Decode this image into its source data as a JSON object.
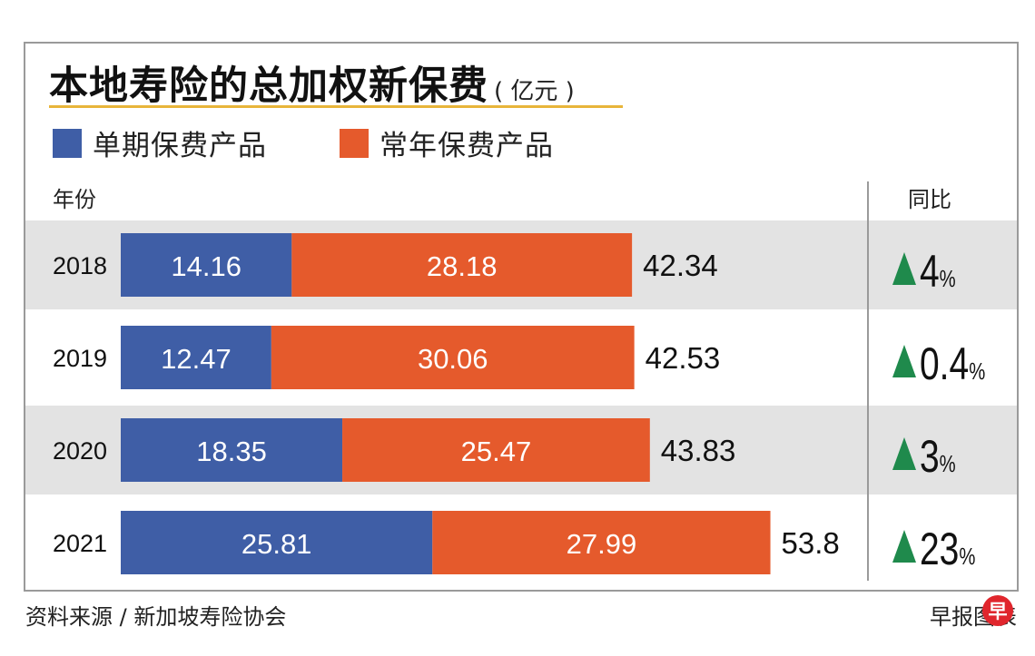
{
  "title": "本地寿险的总加权新保费",
  "unit": "( 亿元 )",
  "legend": [
    {
      "label": "单期保费产品",
      "color": "#3f5ea6"
    },
    {
      "label": "常年保费产品",
      "color": "#e55a2c"
    }
  ],
  "headers": {
    "year": "年份",
    "yoy": "同比"
  },
  "footer": {
    "source": "资料来源 / 新加坡寿险协会",
    "credit": "早报图表",
    "logo_text": "早"
  },
  "colors": {
    "single": "#3f5ea6",
    "regular": "#e55a2c",
    "row_shade": "#e3e3e3",
    "arrow": "#1f8a4c"
  },
  "chart_data": {
    "type": "bar",
    "stacked": true,
    "orientation": "horizontal",
    "categories": [
      "2018",
      "2019",
      "2020",
      "2021"
    ],
    "series": [
      {
        "name": "单期保费产品",
        "values": [
          14.16,
          12.47,
          18.35,
          25.81
        ]
      },
      {
        "name": "常年保费产品",
        "values": [
          28.18,
          30.06,
          25.47,
          27.99
        ]
      }
    ],
    "series_labels": [
      [
        "14.16",
        "12.47",
        "18.35",
        "25.81"
      ],
      [
        "28.18",
        "30.06",
        "25.47",
        "27.99"
      ]
    ],
    "totals": [
      "42.34",
      "42.53",
      "43.83",
      "53.8"
    ],
    "yoy": [
      {
        "num": "4",
        "pct": "%"
      },
      {
        "num": "0.4",
        "pct": "%"
      },
      {
        "num": "3",
        "pct": "%"
      },
      {
        "num": "23",
        "pct": "%"
      }
    ]
  }
}
